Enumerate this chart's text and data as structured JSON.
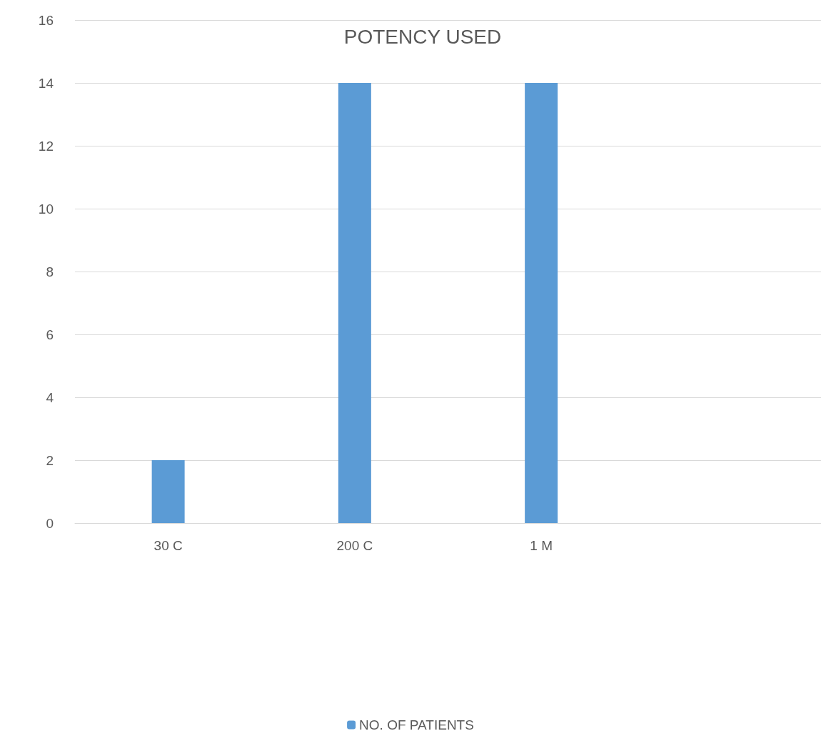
{
  "chart_data": {
    "type": "bar",
    "title": "POTENCY USED",
    "categories": [
      "30 C",
      "200 C",
      "1 M",
      null
    ],
    "series": [
      {
        "name": "NO. OF PATIENTS",
        "color": "#5b9bd5",
        "values": [
          2,
          14,
          14,
          null
        ]
      }
    ],
    "ylim": [
      0,
      16
    ],
    "yticks": [
      0,
      2,
      4,
      6,
      8,
      10,
      12,
      14,
      16
    ],
    "grid": "y",
    "legend": "bottom"
  }
}
